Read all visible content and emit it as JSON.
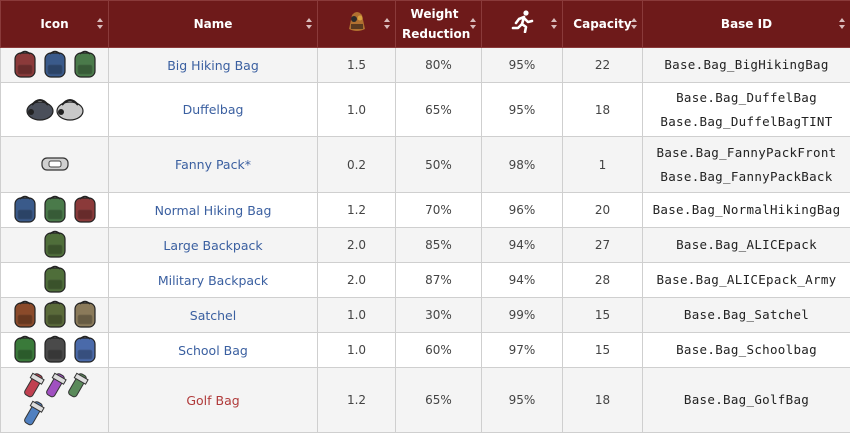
{
  "header": {
    "icon": "Icon",
    "name": "Name",
    "weight_reduction": "Weight Reduction",
    "capacity": "Capacity",
    "base_id": "Base ID"
  },
  "rows": [
    {
      "name": "Big Hiking Bag",
      "name_color": "#3a5fa0",
      "weight": "1.5",
      "weight_reduction": "80%",
      "speed": "95%",
      "capacity": "22",
      "base_id": [
        "Base.Bag_BigHikingBag"
      ]
    },
    {
      "name": "Duffelbag",
      "name_color": "#3a5fa0",
      "weight": "1.0",
      "weight_reduction": "65%",
      "speed": "95%",
      "capacity": "18",
      "base_id": [
        "Base.Bag_DuffelBag",
        "Base.Bag_DuffelBagTINT"
      ]
    },
    {
      "name": "Fanny Pack*",
      "name_color": "#3a5fa0",
      "weight": "0.2",
      "weight_reduction": "50%",
      "speed": "98%",
      "capacity": "1",
      "base_id": [
        "Base.Bag_FannyPackFront",
        "Base.Bag_FannyPackBack"
      ]
    },
    {
      "name": "Normal Hiking Bag",
      "name_color": "#3a5fa0",
      "weight": "1.2",
      "weight_reduction": "70%",
      "speed": "96%",
      "capacity": "20",
      "base_id": [
        "Base.Bag_NormalHikingBag"
      ]
    },
    {
      "name": "Large Backpack",
      "name_color": "#3a5fa0",
      "weight": "2.0",
      "weight_reduction": "85%",
      "speed": "94%",
      "capacity": "27",
      "base_id": [
        "Base.Bag_ALICEpack"
      ]
    },
    {
      "name": "Military Backpack",
      "name_color": "#3a5fa0",
      "weight": "2.0",
      "weight_reduction": "87%",
      "speed": "94%",
      "capacity": "28",
      "base_id": [
        "Base.Bag_ALICEpack_Army"
      ]
    },
    {
      "name": "Satchel",
      "name_color": "#3a5fa0",
      "weight": "1.0",
      "weight_reduction": "30%",
      "speed": "99%",
      "capacity": "15",
      "base_id": [
        "Base.Bag_Satchel"
      ]
    },
    {
      "name": "School Bag",
      "name_color": "#3a5fa0",
      "weight": "1.0",
      "weight_reduction": "60%",
      "speed": "97%",
      "capacity": "15",
      "base_id": [
        "Base.Bag_Schoolbag"
      ]
    },
    {
      "name": "Golf Bag",
      "name_color": "#b03a3a",
      "weight": "1.2",
      "weight_reduction": "65%",
      "speed": "95%",
      "capacity": "18",
      "base_id": [
        "Base.Bag_GolfBag"
      ]
    }
  ]
}
